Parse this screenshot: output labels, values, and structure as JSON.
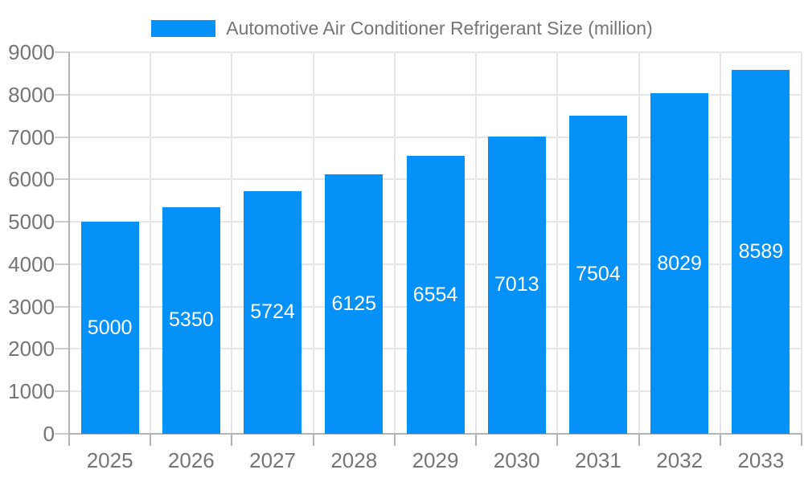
{
  "legend": {
    "label": "Automotive Air Conditioner Refrigerant Size (million)"
  },
  "chart_data": {
    "type": "bar",
    "title": "Automotive Air Conditioner Refrigerant Size (million)",
    "categories": [
      "2025",
      "2026",
      "2027",
      "2028",
      "2029",
      "2030",
      "2031",
      "2032",
      "2033"
    ],
    "values": [
      5000,
      5350,
      5724,
      6125,
      6554,
      7013,
      7504,
      8029,
      8589
    ],
    "value_labels": [
      "5000",
      "5350",
      "5724",
      "6125",
      "6554",
      "7013",
      "7504",
      "8029",
      "8589"
    ],
    "xlabel": "",
    "ylabel": "",
    "ylim": [
      0,
      9000
    ],
    "yticks": [
      0,
      1000,
      2000,
      3000,
      4000,
      5000,
      6000,
      7000,
      8000,
      9000
    ],
    "grid": true,
    "legend_position": "top-center",
    "colors": {
      "bar": "#0591f8",
      "bar_value_text": "#ffffff",
      "axis_text": "#757575",
      "axis_line": "#b3b3b3",
      "gridline": "#e6e6e6",
      "background": "#ffffff"
    }
  }
}
